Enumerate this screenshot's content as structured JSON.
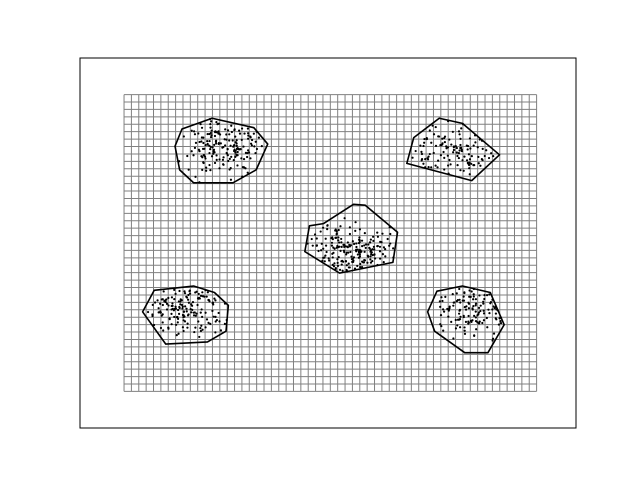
{
  "chart_data": {
    "type": "scatter",
    "title": "",
    "xlabel": "",
    "ylabel": "",
    "axes": {
      "ticks": "none",
      "frame": true
    },
    "xlim": [
      -0.2,
      10.5
    ],
    "ylim": [
      -0.8,
      7.8
    ],
    "grid": {
      "shown": true,
      "x_range": [
        0.75,
        9.65
      ],
      "y_range": [
        0.05,
        6.95
      ],
      "cells_x": 56,
      "cells_y": 40,
      "color": "#808080"
    },
    "colors": {
      "points": "#000000",
      "hulls": "#000000",
      "frame": "#000000"
    },
    "clusters": [
      {
        "center": [
          2.9,
          5.8
        ],
        "spread": [
          0.48,
          0.36
        ],
        "n": 180,
        "seed": 11,
        "hull": [
          [
            2.65,
            6.4
          ],
          [
            3.55,
            6.18
          ],
          [
            3.85,
            5.8
          ],
          [
            3.6,
            5.2
          ],
          [
            3.1,
            4.9
          ],
          [
            2.25,
            4.9
          ],
          [
            1.95,
            5.2
          ],
          [
            1.85,
            5.75
          ],
          [
            2.0,
            6.15
          ]
        ]
      },
      {
        "center": [
          7.8,
          5.6
        ],
        "spread": [
          0.5,
          0.32
        ],
        "n": 120,
        "seed": 23,
        "hull": [
          [
            7.0,
            5.95
          ],
          [
            7.55,
            6.4
          ],
          [
            8.05,
            6.28
          ],
          [
            8.85,
            5.55
          ],
          [
            8.25,
            4.95
          ],
          [
            6.85,
            5.35
          ]
        ]
      },
      {
        "center": [
          5.6,
          3.3
        ],
        "spread": [
          0.42,
          0.32
        ],
        "n": 200,
        "seed": 37,
        "hull": [
          [
            5.05,
            3.95
          ],
          [
            5.7,
            4.4
          ],
          [
            5.95,
            4.38
          ],
          [
            6.65,
            3.75
          ],
          [
            6.55,
            3.05
          ],
          [
            5.4,
            2.8
          ],
          [
            4.65,
            3.3
          ],
          [
            4.75,
            3.9
          ]
        ]
      },
      {
        "center": [
          2.1,
          1.95
        ],
        "spread": [
          0.48,
          0.33
        ],
        "n": 160,
        "seed": 51,
        "hull": [
          [
            1.4,
            2.4
          ],
          [
            2.25,
            2.5
          ],
          [
            2.7,
            2.35
          ],
          [
            3.0,
            2.05
          ],
          [
            2.95,
            1.45
          ],
          [
            2.55,
            1.2
          ],
          [
            1.65,
            1.15
          ],
          [
            1.15,
            1.9
          ]
        ]
      },
      {
        "center": [
          8.3,
          1.95
        ],
        "spread": [
          0.42,
          0.33
        ],
        "n": 130,
        "seed": 67,
        "hull": [
          [
            7.5,
            2.38
          ],
          [
            8.05,
            2.5
          ],
          [
            8.65,
            2.35
          ],
          [
            8.95,
            1.6
          ],
          [
            8.6,
            0.95
          ],
          [
            8.1,
            0.95
          ],
          [
            7.45,
            1.45
          ],
          [
            7.3,
            1.9
          ]
        ]
      }
    ]
  }
}
